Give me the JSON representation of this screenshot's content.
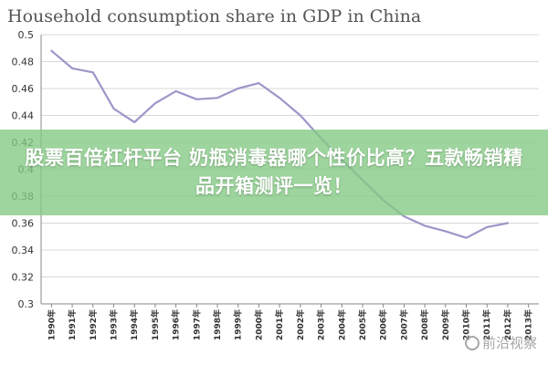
{
  "chart_data": {
    "type": "line",
    "title": "Household consumption share in GDP in China",
    "x": [
      "1990年",
      "1991年",
      "1992年",
      "1993年",
      "1994年",
      "1995年",
      "1996年",
      "1997年",
      "1998年",
      "1999年",
      "2000年",
      "2001年",
      "2002年",
      "2003年",
      "2004年",
      "2005年",
      "2006年",
      "2007年",
      "2008年",
      "2009年",
      "2010年",
      "2011年",
      "2012年",
      "2013年"
    ],
    "series": [
      {
        "values": [
          0.488,
          0.475,
          0.472,
          0.445,
          0.435,
          0.449,
          0.458,
          0.452,
          0.453,
          0.46,
          0.464,
          0.453,
          0.44,
          0.423,
          0.407,
          0.392,
          0.377,
          0.365,
          0.358,
          0.354,
          0.349,
          0.357,
          0.36,
          null
        ],
        "color": "#9b97c8"
      }
    ],
    "yticks": [
      "0.5",
      "0.48",
      "0.46",
      "0.44",
      "0.42",
      "0.4",
      "0.38",
      "0.36",
      "0.34",
      "0.32",
      "0.3"
    ],
    "ylim": [
      0.3,
      0.5
    ],
    "grid": true,
    "xlabel": "",
    "ylabel": ""
  },
  "overlay": {
    "text": "股票百倍杠杆平台 奶瓶消毒器哪个性价比高？五款畅销精品开箱测评一览！"
  },
  "watermark": {
    "text": "前沿视察"
  }
}
